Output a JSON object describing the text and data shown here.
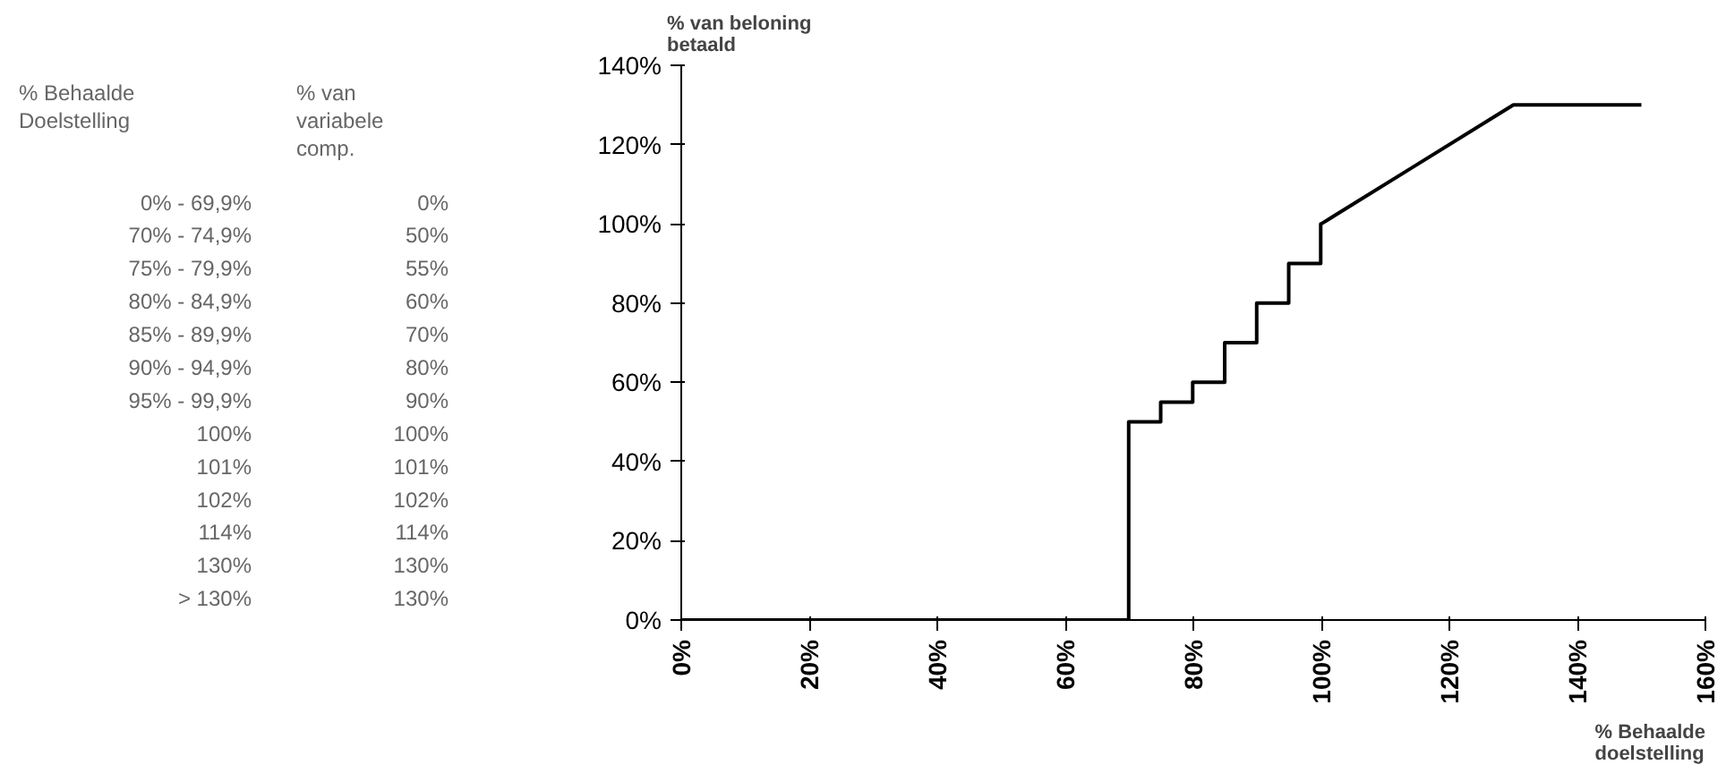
{
  "chart_data": [
    {
      "type": "other",
      "annotations": [
        "% Behaalde\nDoelstelling",
        "% van\nvariabele\ncomp.",
        "0% - 69,9%",
        "0%",
        "70% - 74,9%",
        "50%",
        "75% - 79,9%",
        "55%",
        "80% - 84,9%",
        "60%",
        "85% - 89,9%",
        "70%",
        "90% - 94,9%",
        "80%",
        "95% - 99,9%",
        "90%",
        "100%",
        "100%",
        "101%",
        "101%",
        "102%",
        "102%",
        "114%",
        "114%",
        "130%",
        "130%",
        "> 130%",
        "130%"
      ]
    },
    {
      "type": "line",
      "ylabel": "% van beloning\nbetaald",
      "xlabel": "% Behaalde\ndoelstelling",
      "x": [
        0,
        69.9,
        69.9,
        74.9,
        74.9,
        79.9,
        79.9,
        84.9,
        84.9,
        89.9,
        89.9,
        94.9,
        94.9,
        99.9,
        99.9,
        100,
        101,
        102,
        114,
        130,
        150
      ],
      "series": [
        {
          "color": "#000000",
          "values": [
            0,
            0,
            50,
            50,
            55,
            55,
            60,
            60,
            70,
            70,
            80,
            80,
            90,
            90,
            100,
            100,
            101,
            102,
            114,
            130,
            130
          ]
        }
      ],
      "xlim": [
        0,
        160
      ],
      "xticks": [
        {
          "value": 0,
          "label": "0%"
        },
        {
          "value": 20,
          "label": "20%"
        },
        {
          "value": 40,
          "label": "40%"
        },
        {
          "value": 60,
          "label": "60%"
        },
        {
          "value": 80,
          "label": "80%"
        },
        {
          "value": 100,
          "label": "100%"
        },
        {
          "value": 120,
          "label": "120%"
        },
        {
          "value": 140,
          "label": "140%"
        },
        {
          "value": 160,
          "label": "160%"
        }
      ],
      "ylim": [
        0,
        140
      ],
      "yticks": [
        {
          "value": 0,
          "label": "0%"
        },
        {
          "value": 20,
          "label": "20%"
        },
        {
          "value": 40,
          "label": "40%"
        },
        {
          "value": 60,
          "label": "60%"
        },
        {
          "value": 80,
          "label": "80%"
        },
        {
          "value": 100,
          "label": "100%"
        },
        {
          "value": 120,
          "label": "120%"
        },
        {
          "value": 140,
          "label": "140%"
        }
      ],
      "grid": false,
      "marker": "none",
      "line_style": "solid"
    }
  ]
}
